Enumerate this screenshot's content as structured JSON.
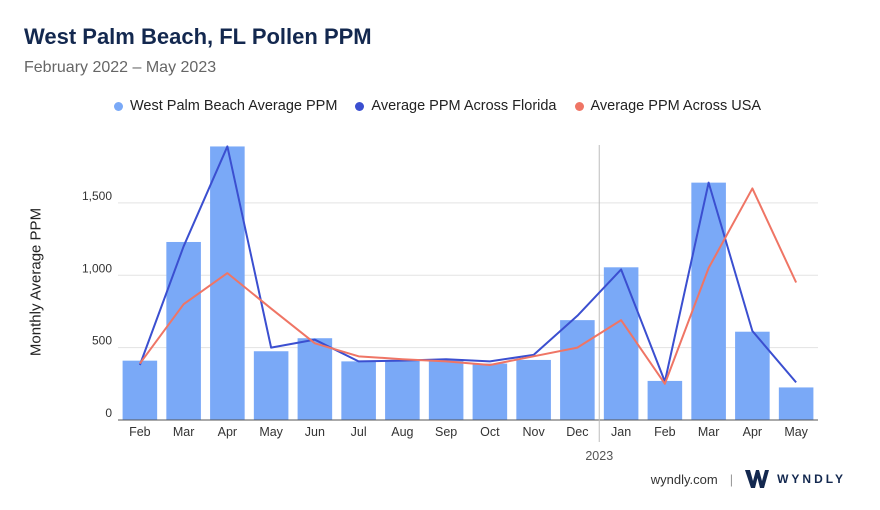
{
  "header": {
    "title": "West Palm Beach, FL Pollen PPM",
    "subtitle": "February 2022 – May 2023"
  },
  "legend": [
    {
      "label": "West Palm Beach Average PPM",
      "color": "#7aa9f7"
    },
    {
      "label": "Average PPM Across Florida",
      "color": "#3b4fd0"
    },
    {
      "label": "Average PPM Across USA",
      "color": "#ef7565"
    }
  ],
  "footer": {
    "site": "wyndly.com",
    "brand": "WYNDLY"
  },
  "chart_data": {
    "type": "bar",
    "ylabel": "Monthly Average PPM",
    "xlabel": "",
    "ylim": [
      0,
      1900
    ],
    "yticks": [
      0,
      500,
      1000,
      1500
    ],
    "ytick_labels": [
      "0",
      "500",
      "1,000",
      "1,500"
    ],
    "grid": true,
    "legend_position": "top",
    "categories": [
      "Feb",
      "Mar",
      "Apr",
      "May",
      "Jun",
      "Jul",
      "Aug",
      "Sep",
      "Oct",
      "Nov",
      "Dec",
      "Jan",
      "Feb",
      "Mar",
      "Apr",
      "May"
    ],
    "year_marker": {
      "label": "2023",
      "before_category_index": 11
    },
    "series": [
      {
        "name": "West Palm Beach Average PPM",
        "type": "bar",
        "color": "#7aa9f7",
        "values": [
          410,
          1230,
          1890,
          475,
          565,
          405,
          410,
          420,
          390,
          415,
          690,
          1055,
          270,
          1640,
          610,
          225
        ]
      },
      {
        "name": "Average PPM Across Florida",
        "type": "line",
        "color": "#3b4fd0",
        "values": [
          380,
          1200,
          1890,
          500,
          555,
          405,
          410,
          420,
          405,
          450,
          720,
          1040,
          265,
          1640,
          615,
          260
        ]
      },
      {
        "name": "Average PPM Across USA",
        "type": "line",
        "color": "#ef7565",
        "values": [
          390,
          800,
          1015,
          770,
          530,
          440,
          420,
          405,
          380,
          440,
          500,
          690,
          250,
          1050,
          1600,
          950
        ]
      }
    ]
  }
}
